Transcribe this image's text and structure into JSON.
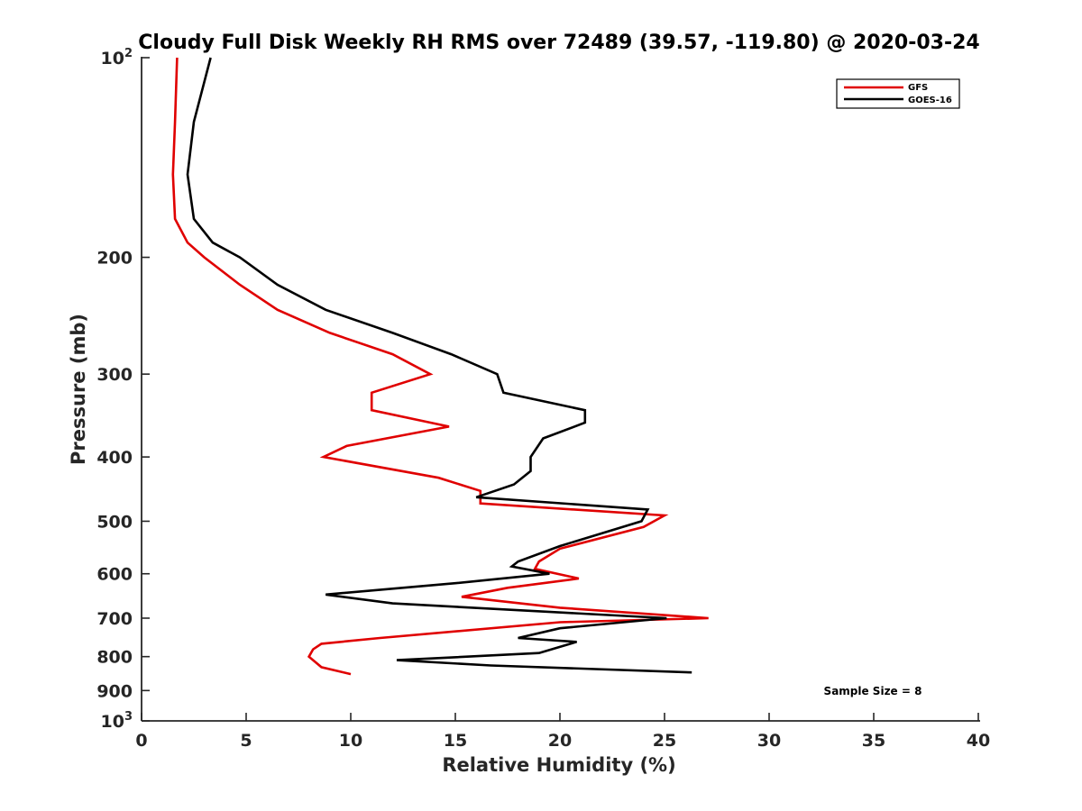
{
  "chart_data": {
    "type": "line",
    "title": "Cloudy Full Disk Weekly RH RMS over 72489 (39.57, -119.80) @ 2020-03-24",
    "xlabel": "Relative Humidity (%)",
    "ylabel": "Pressure (mb)",
    "xlim": [
      0,
      40
    ],
    "ylim": [
      100,
      1000
    ],
    "y_scale": "log",
    "y_reversed": true,
    "grid": false,
    "legend_position": "top-right",
    "annotation": "Sample Size = 8",
    "x_ticks": [
      {
        "value": 0,
        "label": "0"
      },
      {
        "value": 5,
        "label": "5"
      },
      {
        "value": 10,
        "label": "10"
      },
      {
        "value": 15,
        "label": "15"
      },
      {
        "value": 20,
        "label": "20"
      },
      {
        "value": 25,
        "label": "25"
      },
      {
        "value": 30,
        "label": "30"
      },
      {
        "value": 35,
        "label": "35"
      },
      {
        "value": 40,
        "label": "40"
      }
    ],
    "y_ticks": [
      {
        "value": 100,
        "label": "10",
        "sup": "2"
      },
      {
        "value": 200,
        "label": "200",
        "sup": ""
      },
      {
        "value": 300,
        "label": "300",
        "sup": ""
      },
      {
        "value": 400,
        "label": "400",
        "sup": ""
      },
      {
        "value": 500,
        "label": "500",
        "sup": ""
      },
      {
        "value": 600,
        "label": "600",
        "sup": ""
      },
      {
        "value": 700,
        "label": "700",
        "sup": ""
      },
      {
        "value": 800,
        "label": "800",
        "sup": ""
      },
      {
        "value": 900,
        "label": "900",
        "sup": ""
      },
      {
        "value": 1000,
        "label": "10",
        "sup": "3"
      }
    ],
    "series": [
      {
        "name": "GFS",
        "color": "#e00000",
        "points": [
          [
            1.7,
            100
          ],
          [
            1.6,
            125
          ],
          [
            1.5,
            150
          ],
          [
            1.6,
            175
          ],
          [
            2.2,
            190
          ],
          [
            3.0,
            200
          ],
          [
            4.7,
            220
          ],
          [
            6.5,
            240
          ],
          [
            9.0,
            260
          ],
          [
            12.0,
            280
          ],
          [
            13.8,
            300
          ],
          [
            11.0,
            320
          ],
          [
            11.0,
            340
          ],
          [
            14.7,
            360
          ],
          [
            9.8,
            385
          ],
          [
            8.7,
            400
          ],
          [
            14.2,
            430
          ],
          [
            16.2,
            450
          ],
          [
            16.2,
            470
          ],
          [
            25.0,
            490
          ],
          [
            24.0,
            510
          ],
          [
            20.0,
            550
          ],
          [
            19.0,
            575
          ],
          [
            18.8,
            590
          ],
          [
            20.9,
            610
          ],
          [
            17.5,
            630
          ],
          [
            15.3,
            650
          ],
          [
            20.0,
            675
          ],
          [
            27.1,
            700
          ],
          [
            20.0,
            710
          ],
          [
            11.4,
            750
          ],
          [
            8.6,
            765
          ],
          [
            8.2,
            780
          ],
          [
            8.0,
            800
          ],
          [
            8.6,
            830
          ],
          [
            10.0,
            850
          ]
        ]
      },
      {
        "name": "GOES-16",
        "color": "#000000",
        "points": [
          [
            3.3,
            100
          ],
          [
            2.5,
            125
          ],
          [
            2.2,
            150
          ],
          [
            2.5,
            175
          ],
          [
            3.4,
            190
          ],
          [
            4.7,
            200
          ],
          [
            6.5,
            220
          ],
          [
            8.8,
            240
          ],
          [
            12.0,
            260
          ],
          [
            14.8,
            280
          ],
          [
            17.0,
            300
          ],
          [
            17.3,
            320
          ],
          [
            21.2,
            340
          ],
          [
            21.2,
            355
          ],
          [
            19.2,
            375
          ],
          [
            18.6,
            400
          ],
          [
            18.6,
            420
          ],
          [
            17.8,
            440
          ],
          [
            16.0,
            460
          ],
          [
            24.2,
            480
          ],
          [
            23.9,
            500
          ],
          [
            20.0,
            545
          ],
          [
            18.0,
            575
          ],
          [
            17.7,
            585
          ],
          [
            19.5,
            600
          ],
          [
            15.0,
            620
          ],
          [
            8.8,
            645
          ],
          [
            12.0,
            665
          ],
          [
            25.1,
            700
          ],
          [
            20.0,
            725
          ],
          [
            18.0,
            750
          ],
          [
            20.8,
            760
          ],
          [
            19.0,
            790
          ],
          [
            12.2,
            810
          ],
          [
            16.7,
            825
          ],
          [
            26.3,
            845
          ]
        ]
      }
    ]
  }
}
